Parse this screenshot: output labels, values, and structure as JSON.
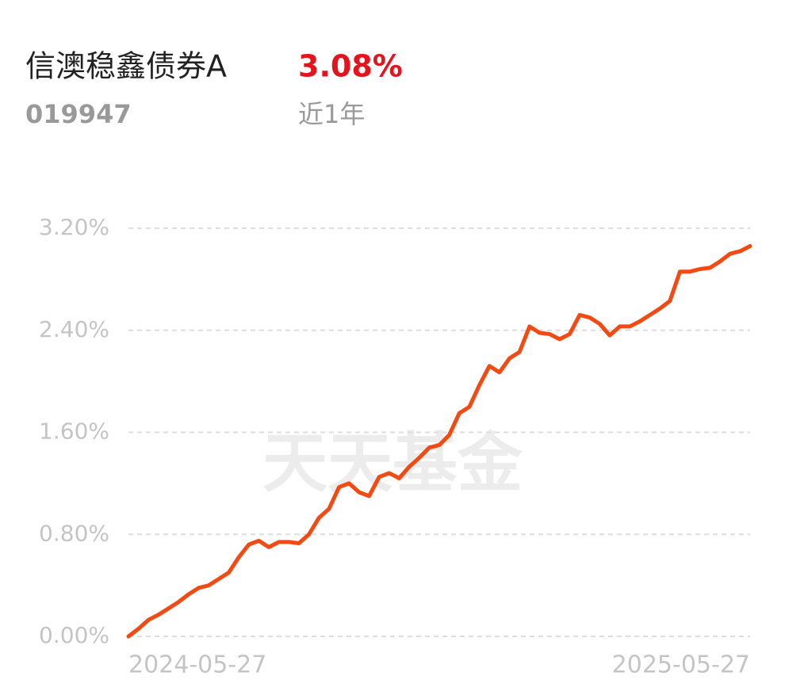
{
  "header": {
    "title": "信澳稳鑫债券A",
    "return": "3.08%",
    "code": "019947",
    "period": "近1年"
  },
  "chart_data": {
    "type": "line",
    "watermark": "天天基金",
    "categories": [
      "2024-05-27",
      null,
      null,
      null,
      null,
      null,
      null,
      null,
      null,
      null,
      null,
      null,
      null,
      null,
      null,
      null,
      null,
      null,
      null,
      null,
      null,
      null,
      null,
      null,
      null,
      null,
      null,
      null,
      null,
      null,
      null,
      null,
      null,
      null,
      null,
      null,
      null,
      null,
      null,
      null,
      null,
      null,
      null,
      null,
      null,
      null,
      null,
      null,
      null,
      null,
      null,
      null,
      null,
      null,
      null,
      null,
      null,
      null,
      null,
      null,
      null,
      null,
      "2025-05-27"
    ],
    "series": [
      {
        "name": "信澳稳鑫债券A",
        "color": "#f24a12",
        "values": [
          0.0,
          0.06,
          0.13,
          0.17,
          0.22,
          0.27,
          0.33,
          0.38,
          0.4,
          0.45,
          0.5,
          0.62,
          0.72,
          0.75,
          0.7,
          0.74,
          0.74,
          0.73,
          0.8,
          0.93,
          1.0,
          1.17,
          1.2,
          1.13,
          1.1,
          1.25,
          1.28,
          1.24,
          1.33,
          1.4,
          1.48,
          1.5,
          1.58,
          1.75,
          1.8,
          1.97,
          2.12,
          2.07,
          2.18,
          2.23,
          2.43,
          2.38,
          2.37,
          2.33,
          2.37,
          2.52,
          2.5,
          2.45,
          2.36,
          2.43,
          2.43,
          2.47,
          2.52,
          2.57,
          2.63,
          2.86,
          2.86,
          2.88,
          2.89,
          2.94,
          3.0,
          3.02,
          3.06
        ]
      }
    ],
    "ylim": [
      0,
      3.2
    ],
    "yticks": [
      {
        "value": 0,
        "label": "0.00%"
      },
      {
        "value": 0.8,
        "label": "0.80%"
      },
      {
        "value": 1.6,
        "label": "1.60%"
      },
      {
        "value": 2.4,
        "label": "2.40%"
      },
      {
        "value": 3.2,
        "label": "3.20%"
      }
    ],
    "grid": true
  }
}
